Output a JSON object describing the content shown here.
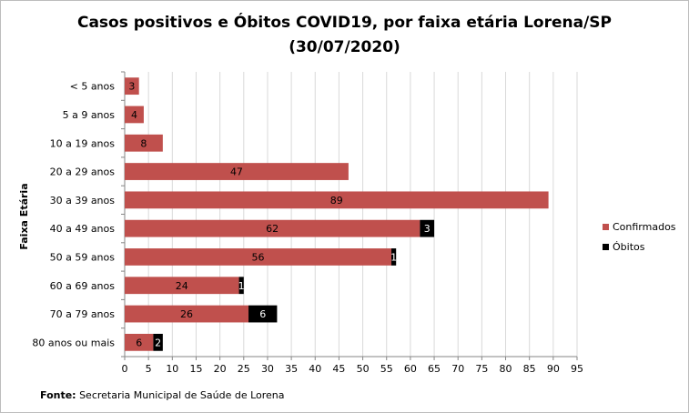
{
  "chart_data": {
    "type": "bar",
    "orientation": "horizontal",
    "stacked": true,
    "title_line1": "Casos positivos  e Óbitos COVID19, por faixa etária Lorena/SP",
    "title_line2": "(30/07/2020)",
    "xlabel": "",
    "ylabel": "Faixa Etária",
    "categories": [
      "< 5 anos",
      "5 a 9 anos",
      "10 a 19 anos",
      "20 a 29 anos",
      "30 a 39 anos",
      "40 a 49 anos",
      "50 a 59 anos",
      "60 a 69 anos",
      "70 a 79 anos",
      "80 anos ou mais"
    ],
    "series": [
      {
        "name": "Confirmados",
        "color": "#c0504d",
        "values": [
          3,
          4,
          8,
          47,
          89,
          62,
          56,
          24,
          26,
          6
        ]
      },
      {
        "name": "Óbitos",
        "color": "#000000",
        "values": [
          0,
          0,
          0,
          0,
          0,
          3,
          1,
          1,
          6,
          2
        ]
      }
    ],
    "xlim": [
      0,
      95
    ],
    "xticks": [
      0,
      5,
      10,
      15,
      20,
      25,
      30,
      35,
      40,
      45,
      50,
      55,
      60,
      65,
      70,
      75,
      80,
      85,
      90,
      95
    ],
    "grid": true,
    "legend_position": "right"
  },
  "source": {
    "label": "Fonte:",
    "text": " Secretaria Municipal de Saúde de Lorena"
  }
}
